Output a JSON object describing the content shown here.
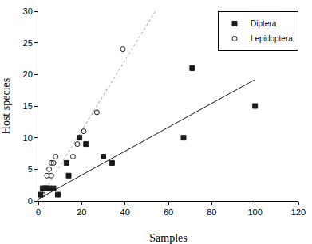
{
  "chart_data": {
    "type": "scatter",
    "x_label": "Samples",
    "y_label": "Host species",
    "xlim": [
      0,
      120
    ],
    "xticks": [
      0,
      20,
      40,
      60,
      80,
      100,
      120
    ],
    "ylim": [
      0,
      30
    ],
    "yticks": [
      0,
      5,
      10,
      15,
      20,
      25,
      30
    ],
    "grid": false,
    "legend": "top-right",
    "series": [
      {
        "name": "Diptera",
        "color": "#1a1a1a",
        "marker": "square",
        "line_style": "solid",
        "x": [
          1,
          2,
          3,
          4,
          5,
          7,
          9,
          13,
          14,
          19,
          22,
          30,
          34,
          67,
          71,
          100
        ],
        "values": [
          1,
          2,
          2,
          2,
          2,
          2,
          1,
          6,
          4,
          10,
          9,
          7,
          6,
          10,
          21,
          15
        ],
        "trend": {
          "x": [
            0,
            100
          ],
          "values": [
            0.3,
            19.2
          ]
        }
      },
      {
        "name": "Lepidoptera",
        "color": "#1a1a1a",
        "marker": "circle-open",
        "line_style": "dot",
        "x": [
          1,
          2,
          3,
          4,
          5,
          6,
          6,
          7,
          8,
          16,
          18,
          21,
          27,
          39
        ],
        "values": [
          1,
          1,
          2,
          4,
          5,
          4,
          6,
          6,
          7,
          7,
          9,
          11,
          14,
          24
        ],
        "trend": {
          "x": [
            0,
            54
          ],
          "values": [
            0,
            30
          ]
        }
      }
    ]
  }
}
